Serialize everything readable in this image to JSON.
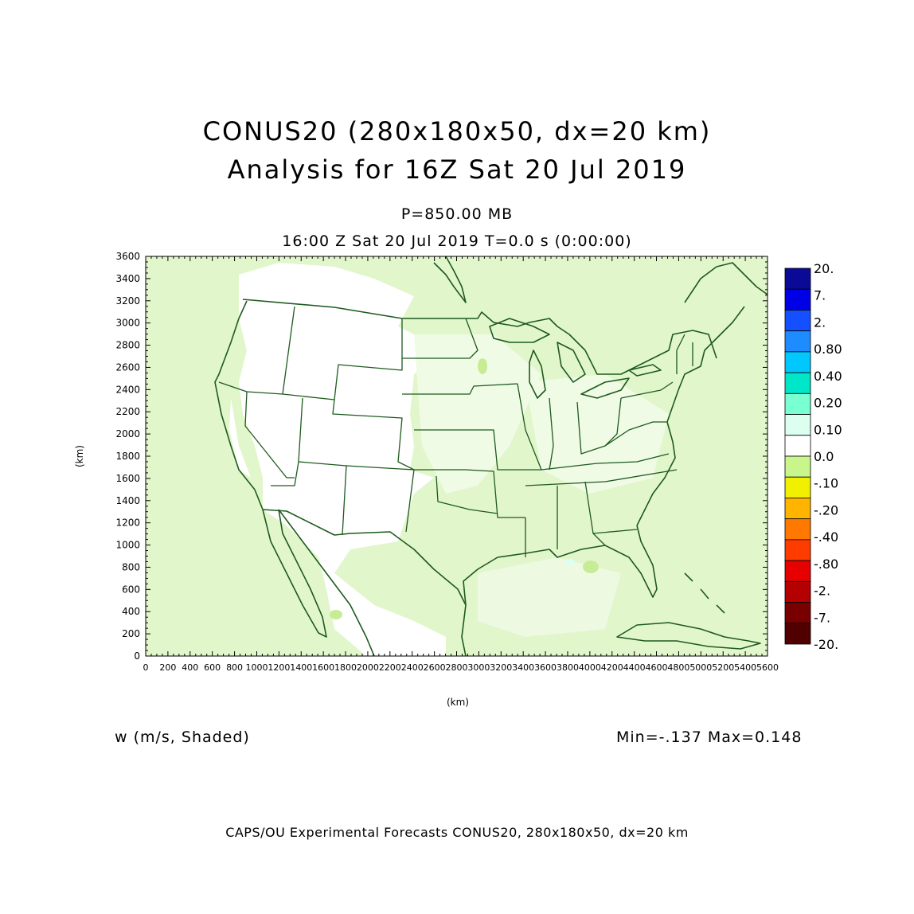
{
  "title": {
    "line1": "CONUS20 (280x180x50, dx=20 km)",
    "line2": "Analysis for 16Z Sat 20 Jul 2019"
  },
  "subtitle": {
    "level": "P=850.00 MB",
    "time": "16:00 Z Sat 20 Jul 2019    T=0.0 s (0:00:00)"
  },
  "axes": {
    "xlabel": "(km)",
    "ylabel": "(km)",
    "xticks": [
      "0",
      "200",
      "400",
      "600",
      "800",
      "1000",
      "1200",
      "1400",
      "1600",
      "1800",
      "2000",
      "2200",
      "2400",
      "2600",
      "2800",
      "3000",
      "3200",
      "3400",
      "3600",
      "3800",
      "4000",
      "4200",
      "4400",
      "4600",
      "4800",
      "5000",
      "5200",
      "5400",
      "5600"
    ],
    "yticks": [
      "0",
      "200",
      "400",
      "600",
      "800",
      "1000",
      "1200",
      "1400",
      "1600",
      "1800",
      "2000",
      "2200",
      "2400",
      "2600",
      "2800",
      "3000",
      "3200",
      "3400",
      "3600"
    ],
    "xlim": [
      0,
      5600
    ],
    "ylim": [
      0,
      3600
    ]
  },
  "field_label": "w (m/s, Shaded)",
  "stats": "Min=-.137 Max=0.148",
  "credit": "CAPS/OU Experimental Forecasts  CONUS20, 280x180x50, dx=20 km",
  "colorbar": {
    "labels": [
      "20.",
      "7.",
      "2.",
      "0.80",
      "0.40",
      "0.20",
      "0.10",
      "0.0",
      "-.10",
      "-.20",
      "-.40",
      "-.80",
      "-2.",
      "-7.",
      "-20."
    ],
    "colors": [
      "#0a0a96",
      "#0000e6",
      "#1450ff",
      "#1e8cff",
      "#00c8ff",
      "#00e6c8",
      "#78ffd2",
      "#dcfff0",
      "#ffffff",
      "#c8f58c",
      "#f0f000",
      "#ffb400",
      "#ff7800",
      "#ff3c00",
      "#e60000",
      "#b40000",
      "#780000",
      "#500000"
    ]
  },
  "map": {
    "background_color": "#e2f6cc",
    "boundary_color": "#1e5a1e"
  }
}
